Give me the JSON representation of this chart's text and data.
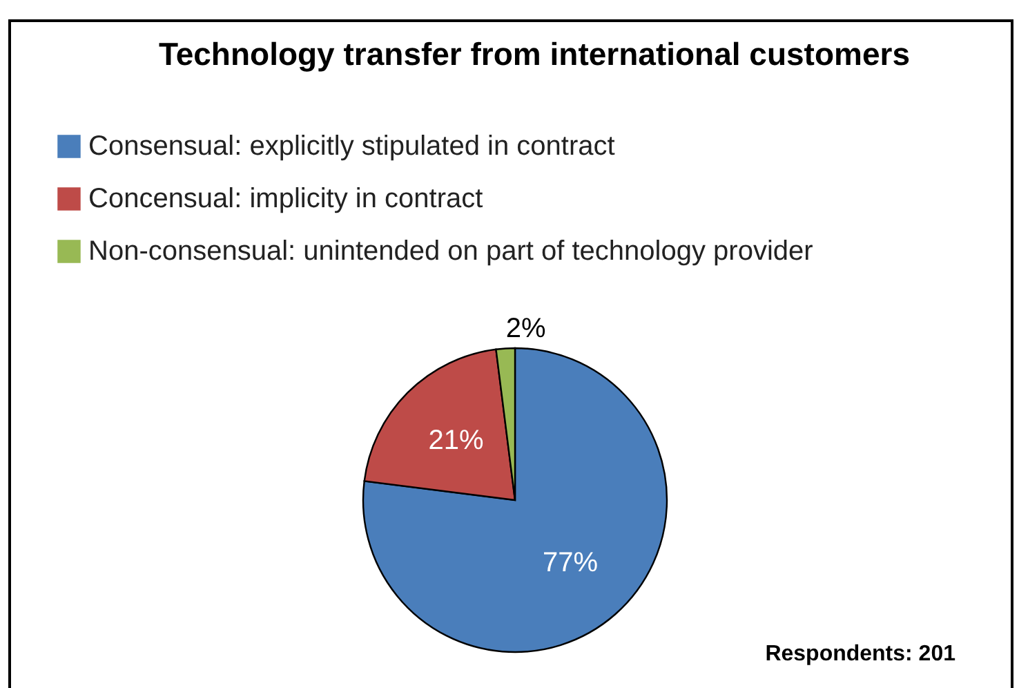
{
  "chart_data": {
    "type": "pie",
    "title": "Technology transfer from international customers",
    "categories": [
      "Consensual: explicitly stipulated in contract",
      "Concensual: implicity in contract",
      "Non-consensual: unintended on part of technology provider"
    ],
    "values": [
      77,
      21,
      2
    ],
    "colors": [
      "#4a7ebb",
      "#be4b48",
      "#98b954"
    ],
    "value_labels": [
      "77%",
      "21%",
      "2%"
    ],
    "legend": "top left",
    "annotations": [
      "Respondents: 201"
    ]
  }
}
